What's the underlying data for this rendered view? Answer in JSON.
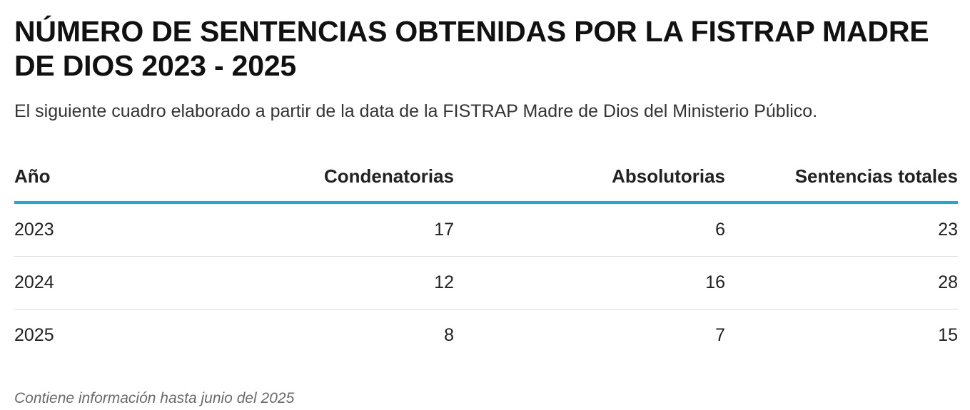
{
  "chart_data": {
    "type": "table",
    "title": "NÚMERO DE SENTENCIAS OBTENIDAS POR LA FISTRAP MADRE DE DIOS 2023 - 2025",
    "subtitle": "El siguiente cuadro elaborado a partir de la data de la FISTRAP Madre de Dios del Ministerio Público.",
    "columns": [
      "Año",
      "Condenatorias",
      "Absolutorias",
      "Sentencias totales"
    ],
    "rows": [
      [
        "2023",
        "17",
        "6",
        "23"
      ],
      [
        "2024",
        "12",
        "16",
        "28"
      ],
      [
        "2025",
        "8",
        "7",
        "15"
      ]
    ],
    "footnote": "Contiene información hasta junio del 2025",
    "colors": {
      "header_rule": "#2aa3cf",
      "row_divider": "#dcdcdc"
    }
  }
}
